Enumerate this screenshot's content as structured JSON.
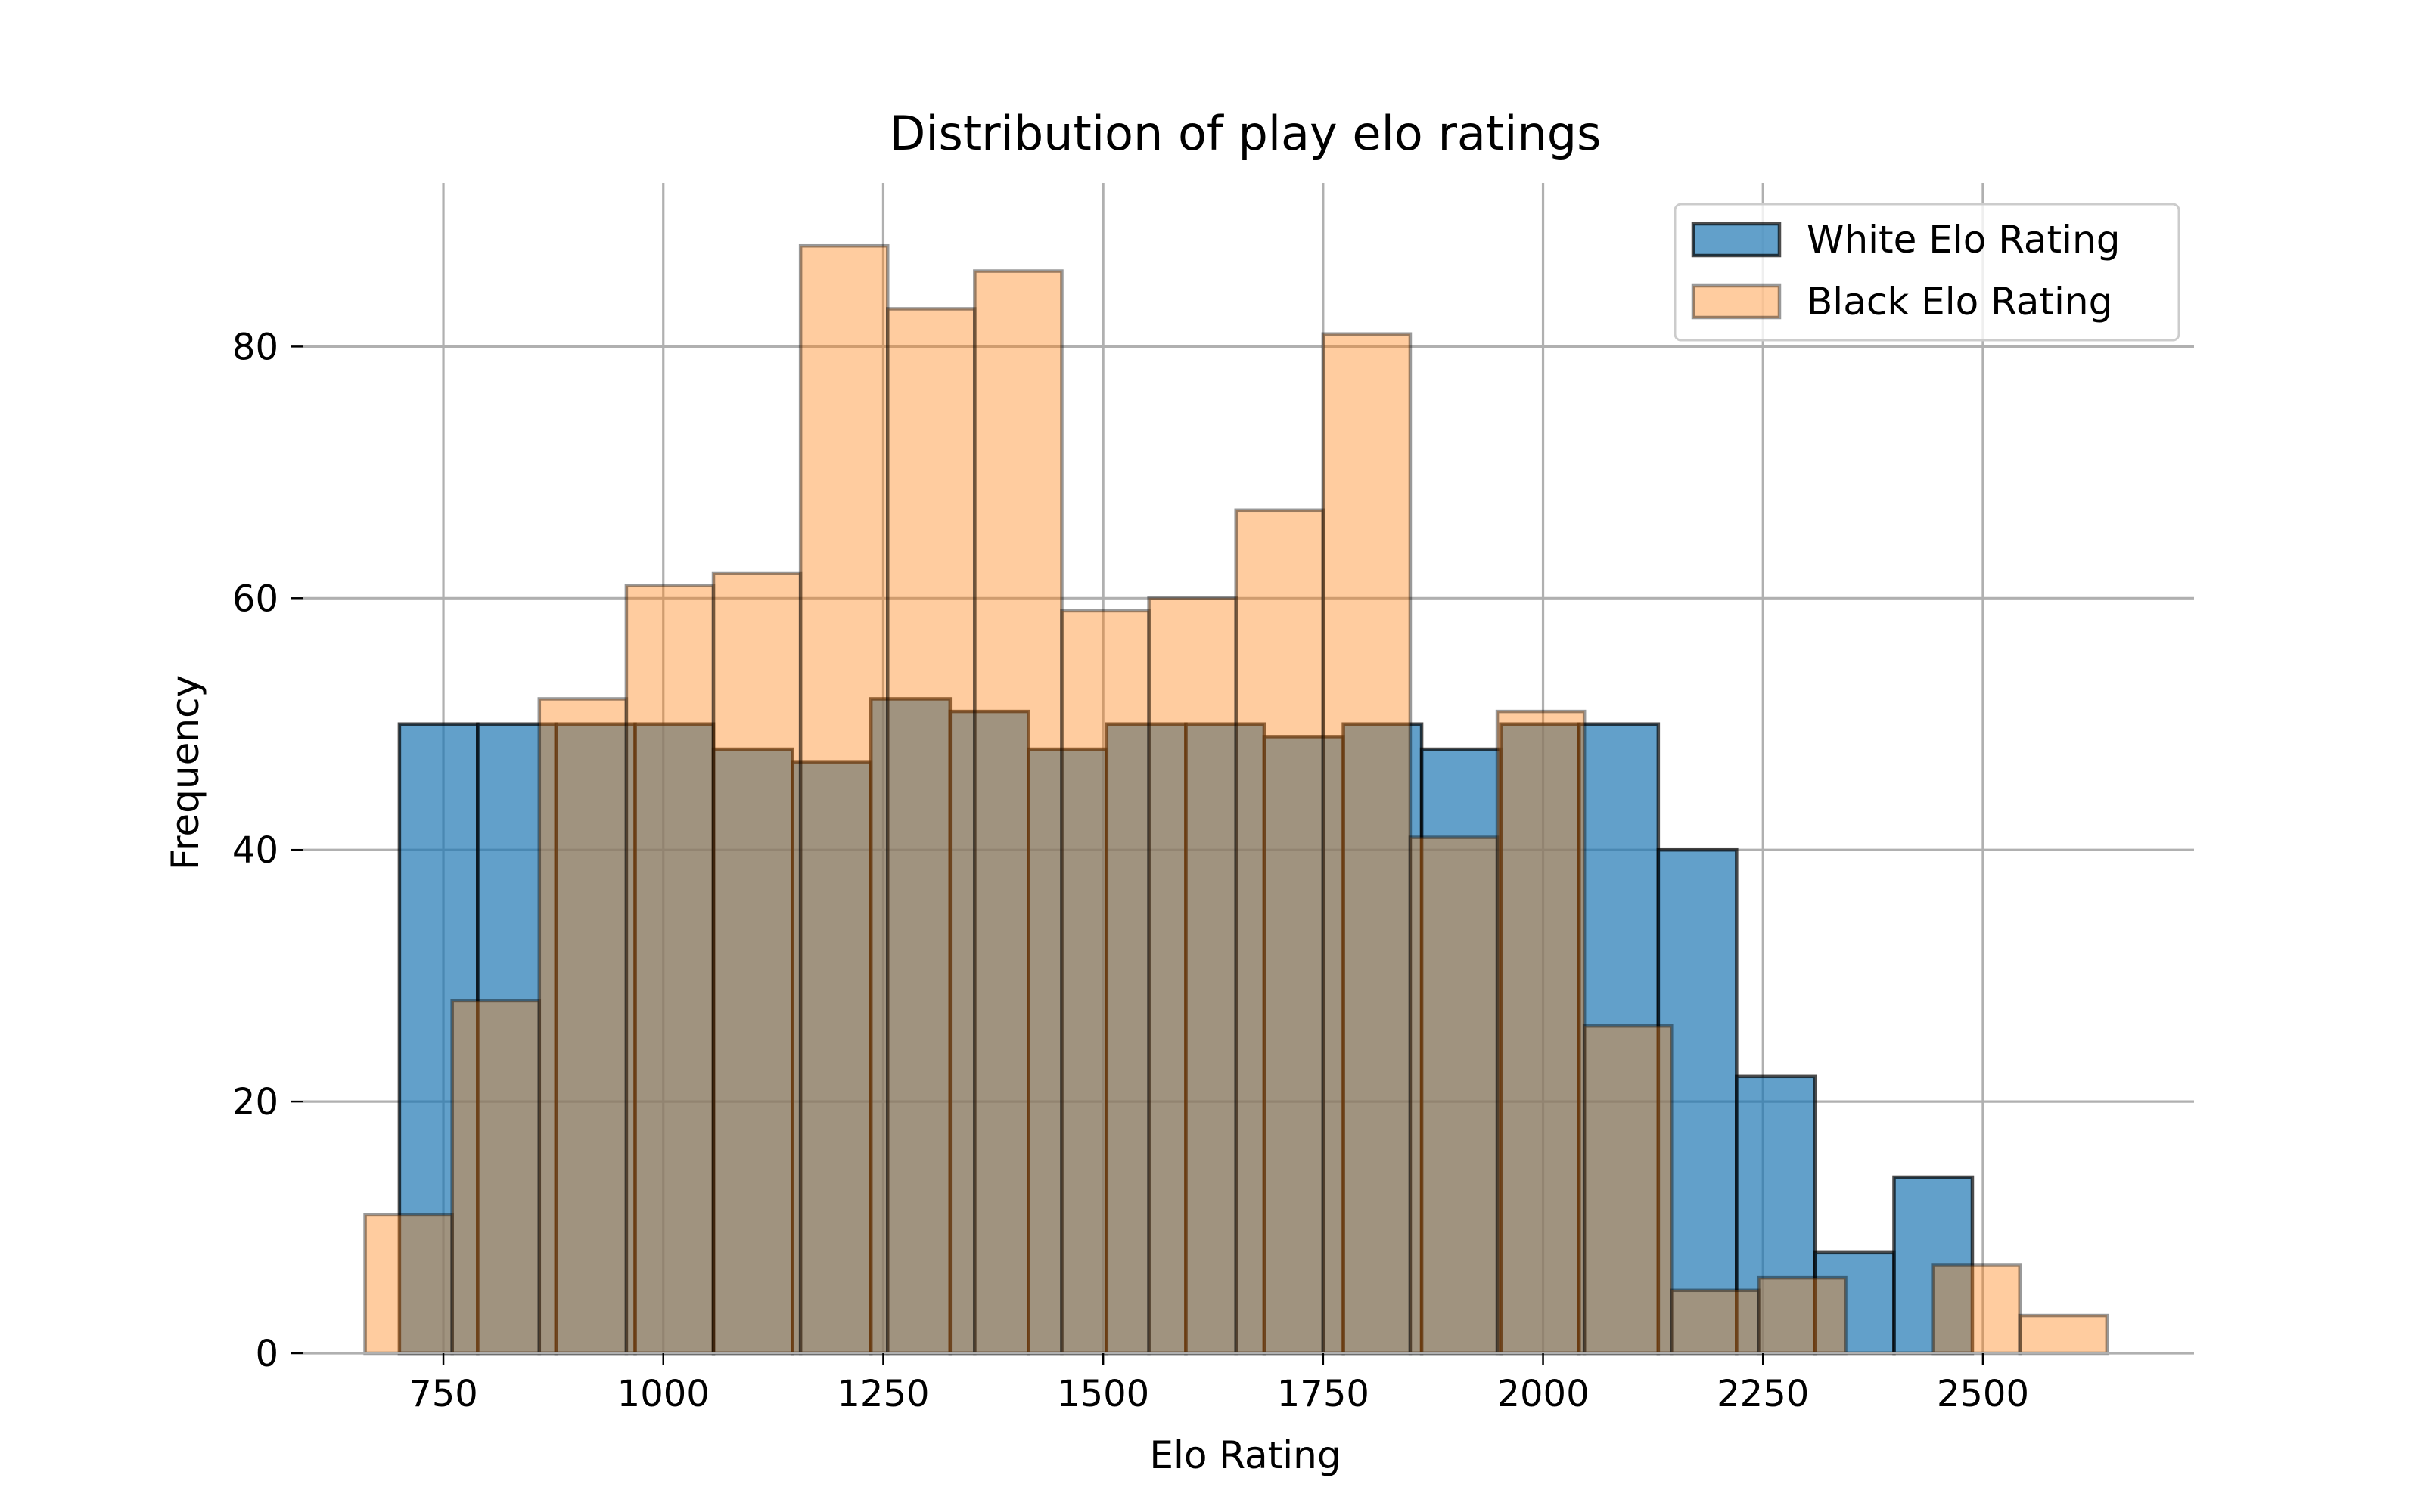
{
  "chart_data": {
    "type": "bar",
    "title": "Distribution of play elo ratings",
    "xlabel": "Elo Rating",
    "ylabel": "Frequency",
    "xlim": [
      590,
      2740
    ],
    "ylim": [
      0,
      93
    ],
    "xticks": [
      750,
      1000,
      1250,
      1500,
      1750,
      2000,
      2250,
      2500
    ],
    "yticks": [
      0,
      20,
      40,
      60,
      80
    ],
    "grid": true,
    "legend_position": "top-right",
    "series": [
      {
        "name": "White Elo Rating",
        "color": "#1f77b4",
        "opacity": 0.7,
        "edgecolor": "#000000",
        "bins": [
          {
            "x0": 700,
            "x1": 789,
            "count": 50
          },
          {
            "x0": 789,
            "x1": 878,
            "count": 50
          },
          {
            "x0": 878,
            "x1": 968,
            "count": 50
          },
          {
            "x0": 968,
            "x1": 1057,
            "count": 50
          },
          {
            "x0": 1057,
            "x1": 1147,
            "count": 48
          },
          {
            "x0": 1147,
            "x1": 1236,
            "count": 47
          },
          {
            "x0": 1236,
            "x1": 1326,
            "count": 52
          },
          {
            "x0": 1326,
            "x1": 1415,
            "count": 51
          },
          {
            "x0": 1415,
            "x1": 1504,
            "count": 48
          },
          {
            "x0": 1504,
            "x1": 1594,
            "count": 50
          },
          {
            "x0": 1594,
            "x1": 1683,
            "count": 50
          },
          {
            "x0": 1683,
            "x1": 1773,
            "count": 49
          },
          {
            "x0": 1773,
            "x1": 1862,
            "count": 50
          },
          {
            "x0": 1862,
            "x1": 1952,
            "count": 48
          },
          {
            "x0": 1952,
            "x1": 2041,
            "count": 50
          },
          {
            "x0": 2041,
            "x1": 2131,
            "count": 50
          },
          {
            "x0": 2131,
            "x1": 2220,
            "count": 40
          },
          {
            "x0": 2220,
            "x1": 2309,
            "count": 22
          },
          {
            "x0": 2309,
            "x1": 2399,
            "count": 8
          },
          {
            "x0": 2399,
            "x1": 2488,
            "count": 14
          }
        ]
      },
      {
        "name": "Black Elo Rating",
        "color": "#ff7f0e",
        "opacity": 0.4,
        "edgecolor": "#000000",
        "bins": [
          {
            "x0": 661,
            "x1": 760,
            "count": 11
          },
          {
            "x0": 760,
            "x1": 859,
            "count": 28
          },
          {
            "x0": 859,
            "x1": 958,
            "count": 52
          },
          {
            "x0": 958,
            "x1": 1057,
            "count": 61
          },
          {
            "x0": 1057,
            "x1": 1156,
            "count": 62
          },
          {
            "x0": 1156,
            "x1": 1255,
            "count": 88
          },
          {
            "x0": 1255,
            "x1": 1354,
            "count": 83
          },
          {
            "x0": 1354,
            "x1": 1453,
            "count": 86
          },
          {
            "x0": 1453,
            "x1": 1552,
            "count": 59
          },
          {
            "x0": 1552,
            "x1": 1651,
            "count": 60
          },
          {
            "x0": 1651,
            "x1": 1750,
            "count": 67
          },
          {
            "x0": 1750,
            "x1": 1849,
            "count": 81
          },
          {
            "x0": 1849,
            "x1": 1948,
            "count": 41
          },
          {
            "x0": 1948,
            "x1": 2047,
            "count": 51
          },
          {
            "x0": 2047,
            "x1": 2146,
            "count": 26
          },
          {
            "x0": 2146,
            "x1": 2245,
            "count": 5
          },
          {
            "x0": 2245,
            "x1": 2344,
            "count": 6
          },
          {
            "x0": 2344,
            "x1": 2443,
            "count": 0
          },
          {
            "x0": 2443,
            "x1": 2542,
            "count": 7
          },
          {
            "x0": 2542,
            "x1": 2641,
            "count": 3
          }
        ]
      }
    ]
  }
}
